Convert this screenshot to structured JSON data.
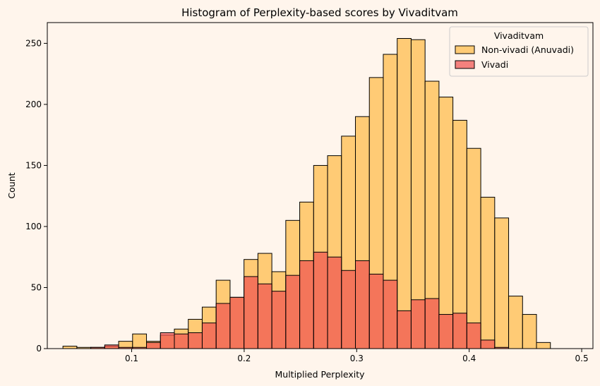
{
  "chart_data": {
    "type": "histogram",
    "title": "Histogram of Perplexity-based scores by Vivaditvam",
    "xlabel": "Multiplied Perplexity",
    "ylabel": "Count",
    "xlim": [
      0.025,
      0.51
    ],
    "ylim": [
      0,
      267
    ],
    "xticks": [
      0.1,
      0.2,
      0.3,
      0.4,
      0.5
    ],
    "xtick_labels": [
      "0.1",
      "0.2",
      "0.3",
      "0.4",
      "0.5"
    ],
    "yticks": [
      0,
      50,
      100,
      150,
      200,
      250
    ],
    "ytick_labels": [
      "0",
      "50",
      "100",
      "150",
      "200",
      "250"
    ],
    "grid": false,
    "legend": {
      "title": "Vivaditvam",
      "placement": "top-right"
    },
    "bin_start": 0.0389,
    "bin_width": 0.01238,
    "series": [
      {
        "name": "Non-vivadi (Anuvadi)",
        "color": "#ffc057",
        "values": [
          2,
          1,
          1,
          2,
          6,
          12,
          6,
          11,
          16,
          24,
          34,
          56,
          42,
          73,
          78,
          63,
          105,
          120,
          150,
          158,
          174,
          190,
          222,
          241,
          254,
          253,
          219,
          206,
          187,
          164,
          124,
          107,
          43,
          28,
          5
        ]
      },
      {
        "name": "Vivadi",
        "color": "#f0504f",
        "values": [
          0,
          0,
          1,
          3,
          1,
          1,
          5,
          13,
          12,
          13,
          21,
          37,
          42,
          59,
          53,
          47,
          60,
          72,
          79,
          75,
          64,
          72,
          61,
          56,
          31,
          40,
          41,
          28,
          29,
          21,
          7,
          1,
          0,
          0,
          0
        ]
      }
    ]
  }
}
